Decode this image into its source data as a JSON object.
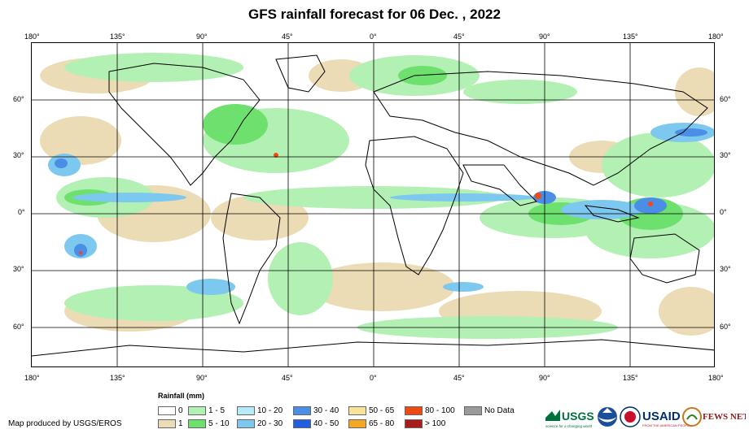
{
  "title": "GFS rainfall forecast for 06 Dec. , 2022",
  "axes": {
    "top_lon": [
      "180°",
      "135°",
      "90°",
      "45°",
      "0°",
      "45°",
      "90°",
      "135°",
      "180°"
    ],
    "bottom_lon": [
      "180°",
      "135°",
      "90°",
      "45°",
      "0°",
      "45°",
      "90°",
      "135°",
      "180°"
    ],
    "left_lat": [
      "60°",
      "30°",
      "0°",
      "30°",
      "60°"
    ],
    "right_lat": [
      "60°",
      "30°",
      "0°",
      "30°",
      "60°"
    ]
  },
  "legend": {
    "title": "Rainfall (mm)",
    "items": [
      {
        "label": "0",
        "color": "#ffffff"
      },
      {
        "label": "1",
        "color": "#ecdcb6"
      },
      {
        "label": "1 - 5",
        "color": "#b3f0b3"
      },
      {
        "label": "5 - 10",
        "color": "#6ee06e"
      },
      {
        "label": "10 - 20",
        "color": "#b7eaf7"
      },
      {
        "label": "20 - 30",
        "color": "#7dc8ee"
      },
      {
        "label": "30 - 40",
        "color": "#4a8ee6"
      },
      {
        "label": "40 - 50",
        "color": "#1f5fe0"
      },
      {
        "label": "50 - 65",
        "color": "#f7e39a"
      },
      {
        "label": "65 - 80",
        "color": "#f5a623"
      },
      {
        "label": "80 - 100",
        "color": "#f04a14"
      },
      {
        "label": "> 100",
        "color": "#a81c1c"
      },
      {
        "label": "No Data",
        "color": "#9a9a9a"
      }
    ]
  },
  "credit": "Map produced by USGS/EROS",
  "logos": {
    "usgs": "USGS",
    "usgs_tagline": "science for a changing world",
    "usaid": "USAID",
    "usaid_tagline": "FROM THE AMERICAN PEOPLE",
    "fewsnet": "FEWS NET"
  }
}
